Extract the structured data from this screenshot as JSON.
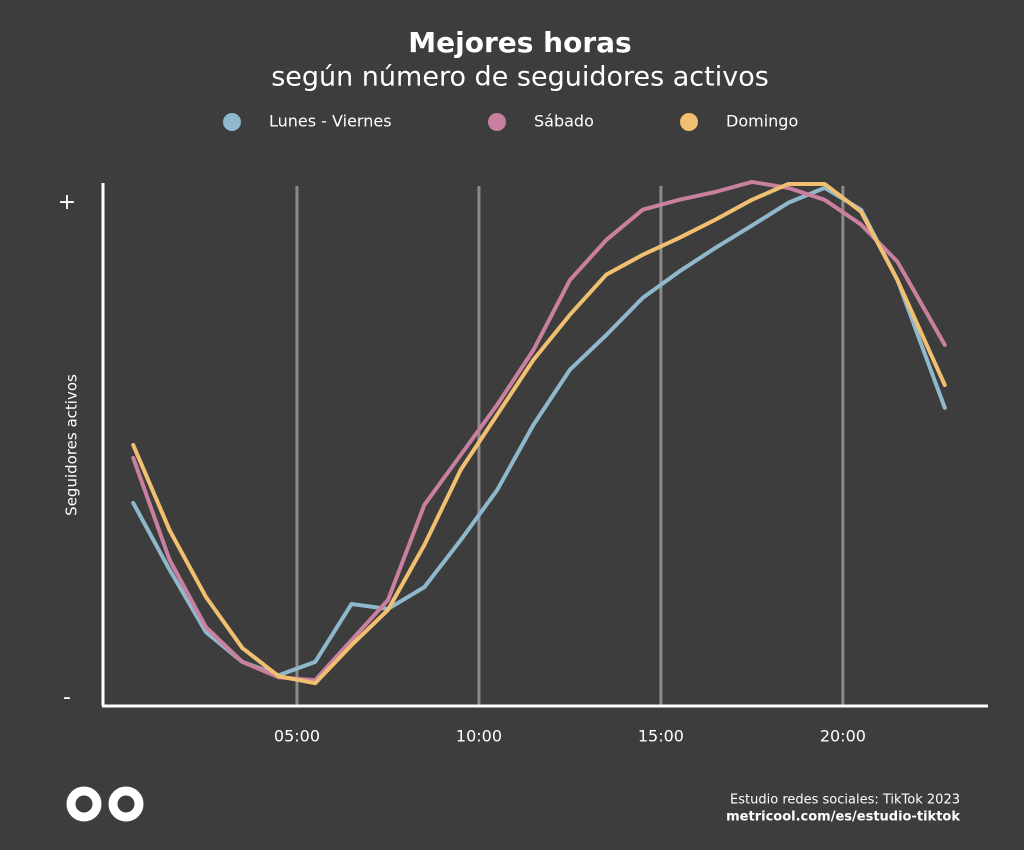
{
  "chart_data": {
    "type": "line",
    "title": "Mejores horas",
    "subtitle": "según número de seguidores activos",
    "y_label": "Seguidores activos",
    "footer": [
      "Estudio redes sociales: TikTok 2023",
      "metricool.com/es/estudio-tiktok"
    ],
    "x": [
      0.5,
      1.5,
      2.5,
      3.5,
      4.5,
      5.5,
      6.5,
      7.5,
      8.5,
      9.5,
      10.5,
      11.5,
      12.5,
      13.5,
      14.5,
      15.5,
      16.5,
      17.5,
      18.5,
      19.5,
      20.5,
      21.5,
      22.8
    ],
    "series": [
      {
        "name": "Lunes - Viernes",
        "color": "#8fb8cc",
        "values": [
          39.4,
          25.9,
          13.3,
          7.3,
          4.6,
          7.3,
          19.0,
          18.0,
          22.4,
          31.9,
          42.0,
          55.2,
          66.3,
          73.3,
          80.8,
          86.1,
          90.9,
          95.4,
          100,
          103.0,
          98.6,
          84.4,
          58.6
        ]
      },
      {
        "name": "Sábado",
        "color": "#c9809e",
        "values": [
          48.5,
          27.9,
          14.3,
          7.3,
          4.2,
          3.6,
          11.7,
          19.8,
          39.0,
          49.1,
          59.2,
          70.3,
          84.4,
          92.5,
          98.6,
          100.6,
          102.2,
          104.2,
          103.0,
          100.6,
          95.6,
          88.1,
          71.3
        ]
      },
      {
        "name": "Domingo",
        "color": "#f0c070",
        "values": [
          51.1,
          33.9,
          20.4,
          10.1,
          4.4,
          3.0,
          10.7,
          17.8,
          30.9,
          46.1,
          57.2,
          68.3,
          77.4,
          85.5,
          89.5,
          92.9,
          96.6,
          100.6,
          103.8,
          103.8,
          98.2,
          84.4,
          63.2
        ]
      }
    ],
    "xlim": [
      -0.33,
      23.96
    ],
    "xticks": [
      {
        "value": 5,
        "label": "05:00"
      },
      {
        "value": 10,
        "label": "10:00"
      },
      {
        "value": 15,
        "label": "15:00"
      },
      {
        "value": 20,
        "label": "20:00"
      }
    ],
    "ylim": [
      -1.4,
      105
    ],
    "yticks": [
      {
        "value": 0,
        "label": "-"
      },
      {
        "value": 100,
        "label": "+"
      }
    ],
    "grid": true
  }
}
